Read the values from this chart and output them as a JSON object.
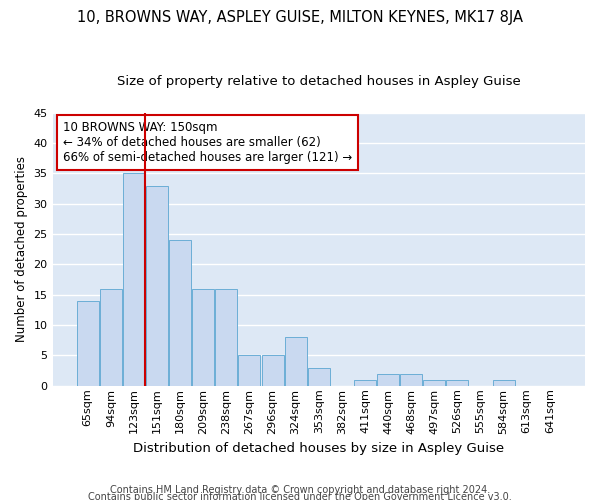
{
  "title": "10, BROWNS WAY, ASPLEY GUISE, MILTON KEYNES, MK17 8JA",
  "subtitle": "Size of property relative to detached houses in Aspley Guise",
  "xlabel": "Distribution of detached houses by size in Aspley Guise",
  "ylabel": "Number of detached properties",
  "categories": [
    "65sqm",
    "94sqm",
    "123sqm",
    "151sqm",
    "180sqm",
    "209sqm",
    "238sqm",
    "267sqm",
    "296sqm",
    "324sqm",
    "353sqm",
    "382sqm",
    "411sqm",
    "440sqm",
    "468sqm",
    "497sqm",
    "526sqm",
    "555sqm",
    "584sqm",
    "613sqm",
    "641sqm"
  ],
  "values": [
    14,
    16,
    35,
    33,
    24,
    16,
    16,
    5,
    5,
    8,
    3,
    0,
    1,
    2,
    2,
    1,
    1,
    0,
    1,
    0,
    0
  ],
  "bar_color": "#c9d9f0",
  "bar_edgecolor": "#6baed6",
  "background_color": "#dde8f5",
  "grid_color": "#ffffff",
  "red_line_x": 3.0,
  "annotation_text": "10 BROWNS WAY: 150sqm\n← 34% of detached houses are smaller (62)\n66% of semi-detached houses are larger (121) →",
  "annotation_box_color": "#ffffff",
  "annotation_box_edgecolor": "#cc0000",
  "footer1": "Contains HM Land Registry data © Crown copyright and database right 2024.",
  "footer2": "Contains public sector information licensed under the Open Government Licence v3.0.",
  "ylim": [
    0,
    45
  ],
  "yticks": [
    0,
    5,
    10,
    15,
    20,
    25,
    30,
    35,
    40,
    45
  ],
  "title_fontsize": 10.5,
  "subtitle_fontsize": 9.5,
  "xlabel_fontsize": 9.5,
  "ylabel_fontsize": 8.5,
  "tick_fontsize": 8,
  "annotation_fontsize": 8.5,
  "footer_fontsize": 7.0
}
